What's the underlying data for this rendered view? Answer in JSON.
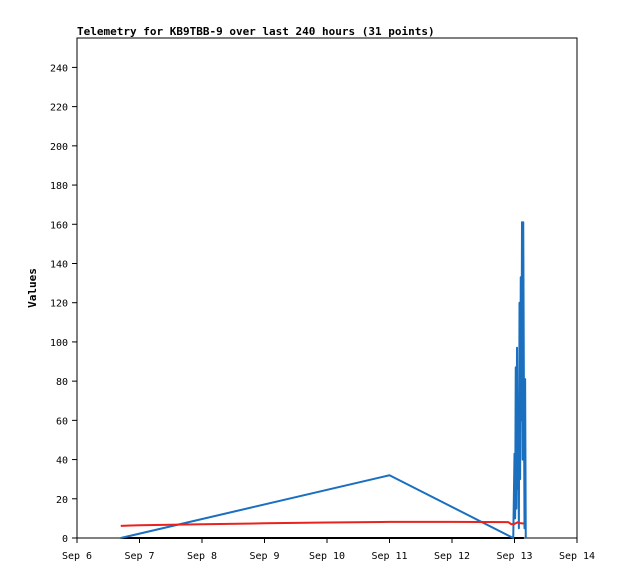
{
  "chart_data": {
    "type": "line",
    "title": "Telemetry for KB9TBB-9 over last 240 hours (31 points)",
    "xlabel": "",
    "ylabel": "Values",
    "x_ticks": [
      "Sep 6",
      "Sep 7",
      "Sep 8",
      "Sep 9",
      "Sep 10",
      "Sep 11",
      "Sep 12",
      "Sep 13",
      "Sep 14"
    ],
    "xlim": [
      0,
      8
    ],
    "y_ticks": [
      "0",
      "20",
      "40",
      "60",
      "80",
      "100",
      "120",
      "140",
      "160",
      "180",
      "200",
      "220",
      "240"
    ],
    "ylim": [
      0,
      255
    ],
    "grid": false,
    "legend": "none",
    "series": [
      {
        "color": "#000000",
        "points": [
          [
            0.7,
            0
          ],
          [
            6.95,
            0
          ],
          [
            7.0,
            0
          ],
          [
            7.05,
            0
          ],
          [
            7.1,
            0
          ],
          [
            7.15,
            0
          ]
        ]
      },
      {
        "color": "#1a6fbf",
        "points": [
          [
            0.7,
            0
          ],
          [
            5.0,
            32
          ],
          [
            6.98,
            0
          ],
          [
            7.0,
            43
          ],
          [
            7.01,
            10
          ],
          [
            7.02,
            87
          ],
          [
            7.03,
            15
          ],
          [
            7.04,
            97
          ],
          [
            7.05,
            25
          ],
          [
            7.06,
            50
          ],
          [
            7.07,
            5
          ],
          [
            7.08,
            120
          ],
          [
            7.09,
            30
          ],
          [
            7.1,
            133
          ],
          [
            7.11,
            60
          ],
          [
            7.12,
            161
          ],
          [
            7.13,
            40
          ],
          [
            7.14,
            161
          ],
          [
            7.15,
            80
          ],
          [
            7.16,
            5
          ],
          [
            7.17,
            81
          ],
          [
            7.18,
            0
          ]
        ]
      },
      {
        "color": "#e8231f",
        "points": [
          [
            0.7,
            6.2
          ],
          [
            1.0,
            6.5
          ],
          [
            2.0,
            7.0
          ],
          [
            3.0,
            7.5
          ],
          [
            4.0,
            7.9
          ],
          [
            5.0,
            8.2
          ],
          [
            6.0,
            8.2
          ],
          [
            6.9,
            8.1
          ],
          [
            6.95,
            7.0
          ],
          [
            7.0,
            7.2
          ],
          [
            7.05,
            8.0
          ],
          [
            7.1,
            7.5
          ],
          [
            7.15,
            7.4
          ]
        ]
      }
    ]
  }
}
